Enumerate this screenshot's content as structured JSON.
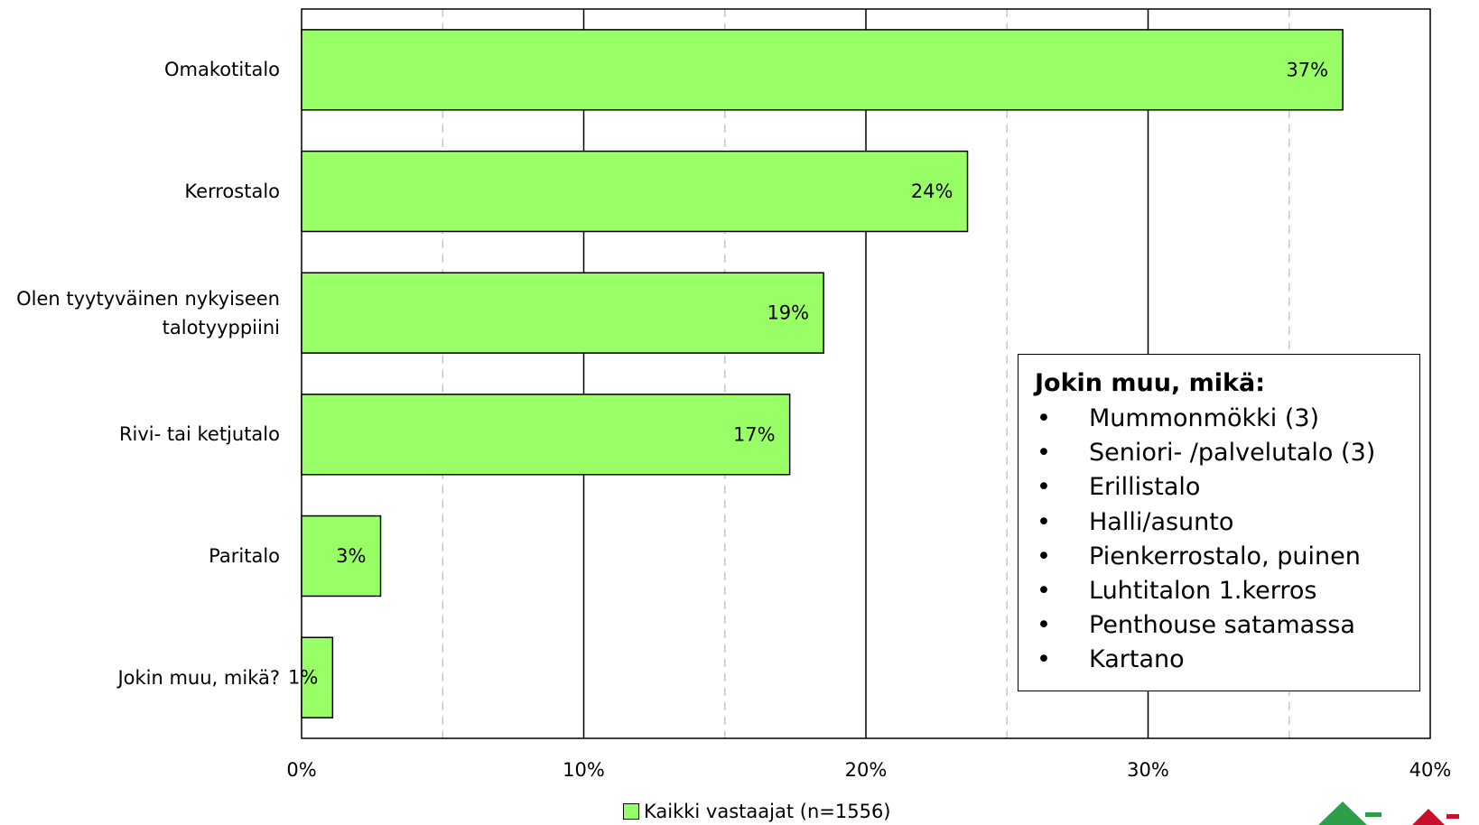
{
  "chart_data": {
    "type": "bar",
    "orientation": "horizontal",
    "categories": [
      "Omakotitalo",
      "Kerrostalo",
      "Olen tyytyväinen nykyiseen talotyyppiini",
      "Rivi- tai ketjutalo",
      "Paritalo",
      "Jokin muu, mikä?"
    ],
    "category_lines": [
      [
        "Omakotitalo"
      ],
      [
        "Kerrostalo"
      ],
      [
        "Olen tyytyväinen nykyiseen",
        "talotyyppiini"
      ],
      [
        "Rivi- tai ketjutalo"
      ],
      [
        "Paritalo"
      ],
      [
        "Jokin muu, mikä?"
      ]
    ],
    "series": [
      {
        "name": "Kaikki vastaajat (n=1556)",
        "values": [
          0.369,
          0.236,
          0.185,
          0.173,
          0.028,
          0.011
        ],
        "labels": [
          "37%",
          "24%",
          "19%",
          "17%",
          "3%",
          "1%"
        ],
        "color": "#99ff66"
      }
    ],
    "xlim": [
      0,
      0.4
    ],
    "xticks": [
      0,
      0.1,
      0.2,
      0.3,
      0.4
    ],
    "xtick_labels": [
      "0%",
      "10%",
      "20%",
      "30%",
      "40%"
    ],
    "grid": "major solid, minor dashed",
    "legend_position": "bottom-center"
  },
  "callout": {
    "title": "Jokin muu, mikä:",
    "items": [
      "Mummonmökki (3)",
      "Seniori- /palvelutalo (3)",
      "Erillistalo",
      "Halli/asunto",
      "Pienkerrostalo, puinen",
      "Luhtitalon 1.kerros",
      "Penthouse satamassa",
      "Kartano"
    ]
  },
  "legend": {
    "label": "Kaikki vastaajat (n=1556)"
  },
  "colors": {
    "bar": "#99ff66",
    "logo_green": "#2e9e4a",
    "logo_red": "#c8102e"
  }
}
